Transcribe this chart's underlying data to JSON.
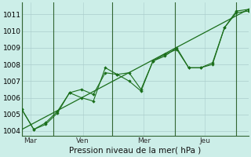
{
  "xlabel": "Pression niveau de la mer( hPa )",
  "background_color": "#cceee8",
  "grid_color": "#aacccc",
  "line_color": "#1a6e1a",
  "ylim": [
    1003.7,
    1011.7
  ],
  "yticks": [
    1004,
    1005,
    1006,
    1007,
    1008,
    1009,
    1010,
    1011
  ],
  "x_tick_labels": [
    "Mar",
    "Ven",
    "Mer",
    "Jeu"
  ],
  "x_tick_positions": [
    0.5,
    3.5,
    7.0,
    10.5
  ],
  "x_sep_positions": [
    0.0,
    1.8,
    5.2,
    8.8,
    12.3
  ],
  "series_straight": [
    1004.1,
    1004.5,
    1004.9,
    1005.3,
    1005.7,
    1006.1,
    1006.5,
    1006.9,
    1007.3,
    1007.7,
    1008.1,
    1008.5,
    1008.9,
    1009.3,
    1009.7,
    1010.1,
    1010.5,
    1010.9,
    1011.3
  ],
  "series_wavy1": [
    1005.3,
    1004.1,
    1004.4,
    1005.1,
    1006.3,
    1006.5,
    1006.2,
    1007.5,
    1007.4,
    1007.5,
    1006.5,
    1008.2,
    1008.6,
    1008.9,
    1007.8,
    1007.8,
    1008.0,
    1010.2,
    1011.1,
    1011.2
  ],
  "series_wavy2": [
    1005.3,
    1004.1,
    1004.5,
    1005.2,
    1006.3,
    1006.0,
    1005.8,
    1007.8,
    1007.4,
    1007.0,
    1006.4,
    1008.2,
    1008.5,
    1009.0,
    1007.8,
    1007.8,
    1008.1,
    1010.2,
    1011.2,
    1011.3
  ]
}
